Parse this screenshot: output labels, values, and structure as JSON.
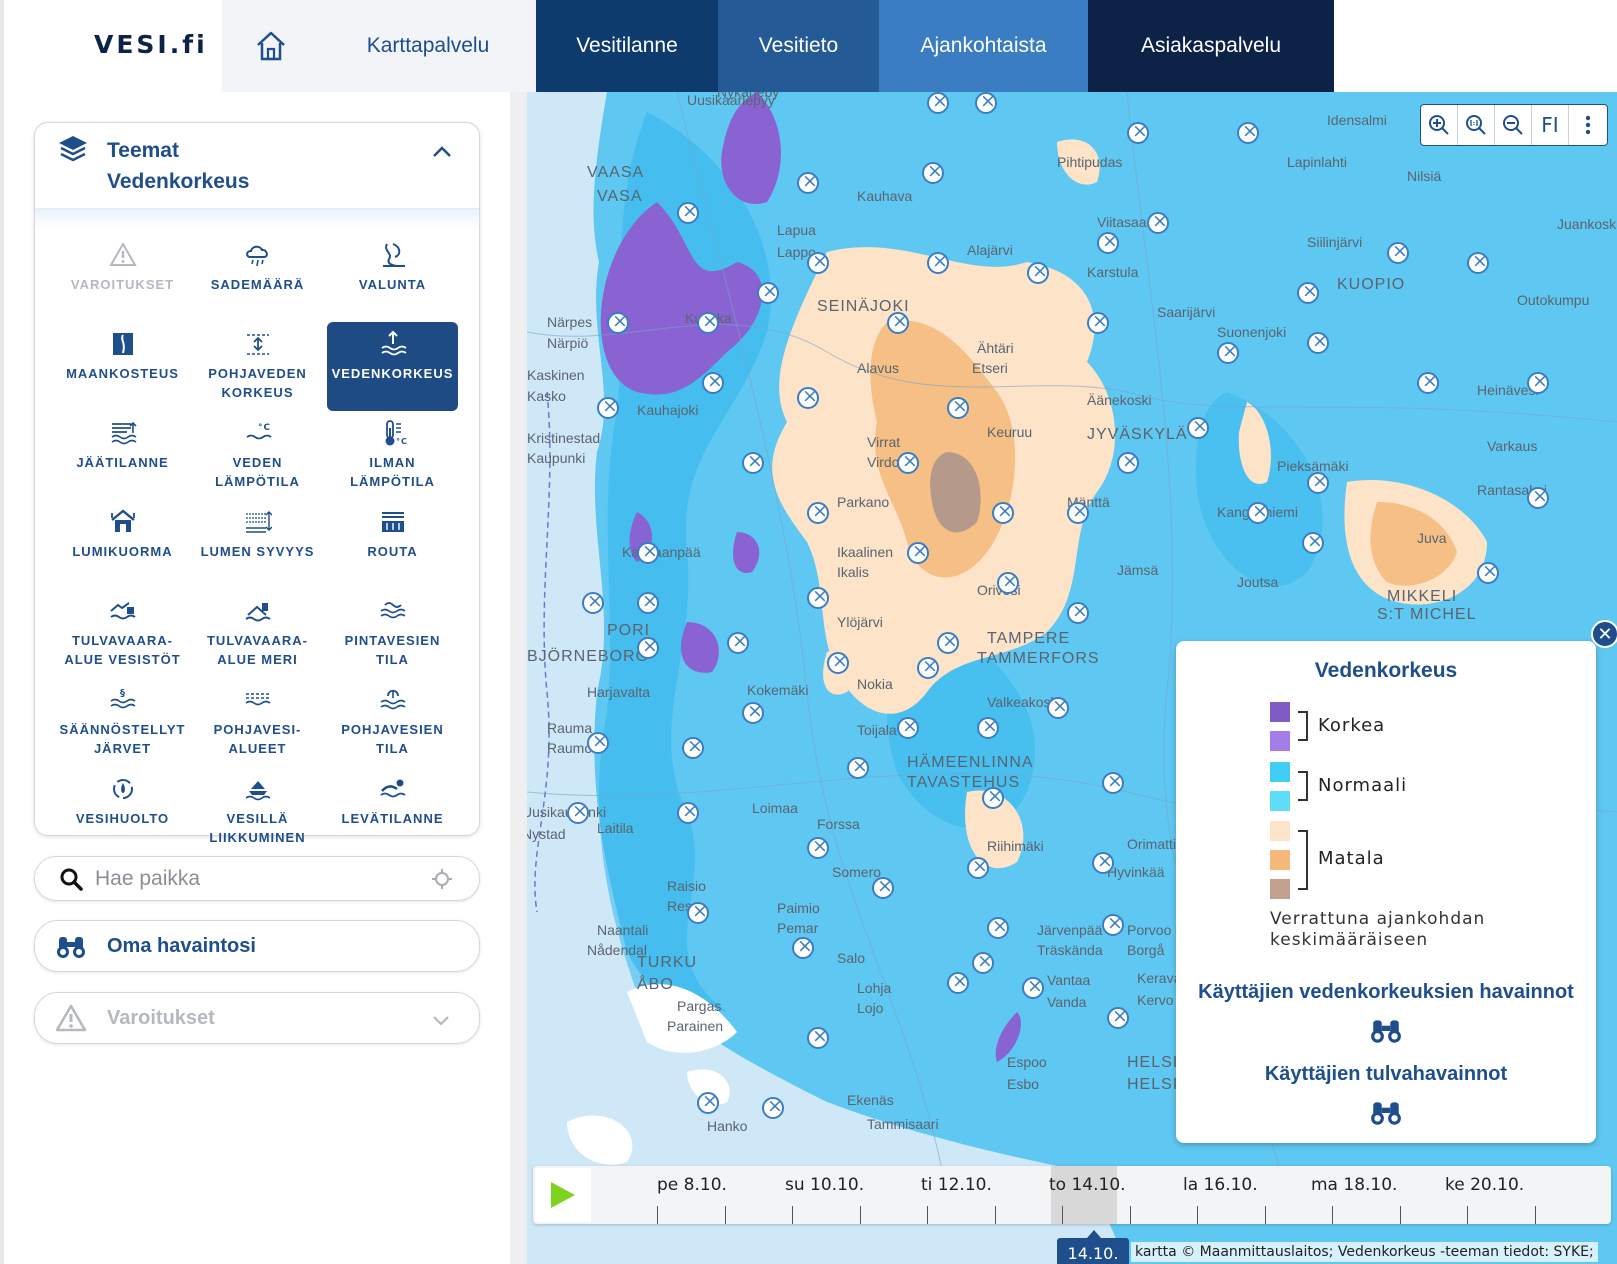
{
  "header": {
    "logo": "VESI.fi",
    "home_icon": "home-icon",
    "nav": [
      {
        "label": "Karttapalvelu"
      },
      {
        "label": "Vesitilanne"
      },
      {
        "label": "Vesitieto"
      },
      {
        "label": "Ajankohtaista"
      },
      {
        "label": "Asiakaspalvelu"
      }
    ]
  },
  "sidebar": {
    "theme_panel": {
      "title": "Teemat",
      "selected": "Vedenkorkeus",
      "themes": [
        {
          "label": "VAROITUKSET",
          "icon": "warning-icon",
          "state": "disabled"
        },
        {
          "label": "SADEMÄÄRÄ",
          "icon": "rain-cloud-icon",
          "state": "normal"
        },
        {
          "label": "VALUNTA",
          "icon": "runoff-icon",
          "state": "normal"
        },
        {
          "label": "MAANKOSTEUS",
          "icon": "soil-moisture-icon",
          "state": "normal"
        },
        {
          "label": "POHJAVEDEN\nKORKEUS",
          "icon": "groundwater-level-icon",
          "state": "normal"
        },
        {
          "label": "VEDENKORKEUS",
          "icon": "water-level-icon",
          "state": "active"
        },
        {
          "label": "JÄÄTILANNE",
          "icon": "ice-icon",
          "state": "normal"
        },
        {
          "label": "VEDEN\nLÄMPÖTILA",
          "icon": "water-temperature-icon",
          "state": "normal"
        },
        {
          "label": "ILMAN\nLÄMPÖTILA",
          "icon": "thermometer-icon",
          "state": "normal"
        },
        {
          "label": "LUMIKUORMA",
          "icon": "snow-load-icon",
          "state": "normal"
        },
        {
          "label": "LUMEN SYVYYS",
          "icon": "snow-depth-icon",
          "state": "normal"
        },
        {
          "label": "ROUTA",
          "icon": "frost-icon",
          "state": "normal"
        },
        {
          "label": "TULVAVAARA-\nALUE VESISTÖT",
          "icon": "flood-risk-icon",
          "state": "normal"
        },
        {
          "label": "TULVAVAARA-\nALUE MERI",
          "icon": "sea-flood-icon",
          "state": "normal"
        },
        {
          "label": "PINTAVESIEN\nTILA",
          "icon": "surface-water-icon",
          "state": "normal"
        },
        {
          "label": "SÄÄNNÖSTELLYT\nJÄRVET",
          "icon": "regulated-lakes-icon",
          "state": "normal"
        },
        {
          "label": "POHJAVESI-\nALUEET",
          "icon": "groundwater-areas-icon",
          "state": "normal"
        },
        {
          "label": "POHJAVESIEN\nTILA",
          "icon": "groundwater-status-icon",
          "state": "normal"
        },
        {
          "label": "VESIHUOLTO",
          "icon": "water-supply-icon",
          "state": "normal"
        },
        {
          "label": "VESILLÄ\nLIIKKUMINEN",
          "icon": "boating-icon",
          "state": "normal"
        },
        {
          "label": "LEVÄTILANNE",
          "icon": "algae-icon",
          "state": "normal"
        }
      ]
    },
    "search": {
      "placeholder": "Hae paikka"
    },
    "observation": {
      "label": "Oma havaintosi"
    },
    "warnings": {
      "label": "Varoitukset"
    }
  },
  "map": {
    "tools": [
      "zoom-in-icon",
      "zoom-reset-icon",
      "zoom-out-icon",
      "FI",
      "more-icon"
    ],
    "places": [
      {
        "name": "Uusikaarlepyy"
      },
      {
        "name": "Nykarleby"
      },
      {
        "name": "VAASA"
      },
      {
        "name": "VASA"
      },
      {
        "name": "Kauhava"
      },
      {
        "name": "Lapua"
      },
      {
        "name": "Lappo"
      },
      {
        "name": "Pihtipudas"
      },
      {
        "name": "Idensalmi"
      },
      {
        "name": "Lapinlahti"
      },
      {
        "name": "Nilsiä"
      },
      {
        "name": "Viitasaari"
      },
      {
        "name": "Alajärvi"
      },
      {
        "name": "Karstula"
      },
      {
        "name": "Siilinjärvi"
      },
      {
        "name": "KUOPIO"
      },
      {
        "name": "Outokumpu"
      },
      {
        "name": "Juankoski"
      },
      {
        "name": "SEINÄJOKI"
      },
      {
        "name": "Saarijärvi"
      },
      {
        "name": "Suonenjoki"
      },
      {
        "name": "Närpes"
      },
      {
        "name": "Närpiö"
      },
      {
        "name": "Kurikka"
      },
      {
        "name": "Alavus"
      },
      {
        "name": "Ähtäri"
      },
      {
        "name": "Etseri"
      },
      {
        "name": "Äänekoski"
      },
      {
        "name": "Kaskinen"
      },
      {
        "name": "Kasko"
      },
      {
        "name": "Kauhajoki"
      },
      {
        "name": "Heinävesi"
      },
      {
        "name": "Kristinestad"
      },
      {
        "name": "Kaupunki"
      },
      {
        "name": "Virrat"
      },
      {
        "name": "Virdois"
      },
      {
        "name": "Keuruu"
      },
      {
        "name": "JYVÄSKYLÄ"
      },
      {
        "name": "Pieksämäki"
      },
      {
        "name": "Varkaus"
      },
      {
        "name": "Kankaanpää"
      },
      {
        "name": "Parkano"
      },
      {
        "name": "Mänttä"
      },
      {
        "name": "Kangasniemi"
      },
      {
        "name": "Rantasalmi"
      },
      {
        "name": "Juva"
      },
      {
        "name": "Ikaalinen"
      },
      {
        "name": "Ikalis"
      },
      {
        "name": "Jämsä"
      },
      {
        "name": "Joutsa"
      },
      {
        "name": "MIKKELI"
      },
      {
        "name": "S:T MICHEL"
      },
      {
        "name": "Ylöjärvi"
      },
      {
        "name": "Orivesi"
      },
      {
        "name": "PORI"
      },
      {
        "name": "BJÖRNEBORG"
      },
      {
        "name": "TAMPERE"
      },
      {
        "name": "TAMMERFORS"
      },
      {
        "name": "Nokia"
      },
      {
        "name": "Harjavalta"
      },
      {
        "name": "Kokemäki"
      },
      {
        "name": "Valkeakoski"
      },
      {
        "name": "Rauma"
      },
      {
        "name": "Raumo"
      },
      {
        "name": "Toijala"
      },
      {
        "name": "HÄMEENLINNA"
      },
      {
        "name": "TAVASTEHUS"
      },
      {
        "name": "Loimaa"
      },
      {
        "name": "Uusikaupunki"
      },
      {
        "name": "Nystad"
      },
      {
        "name": "Laitila"
      },
      {
        "name": "Forssa"
      },
      {
        "name": "Riihimäki"
      },
      {
        "name": "Orimattila"
      },
      {
        "name": "Somero"
      },
      {
        "name": "Hyvinkää"
      },
      {
        "name": "Raisio"
      },
      {
        "name": "Reso"
      },
      {
        "name": "Paimio"
      },
      {
        "name": "Pemar"
      },
      {
        "name": "Naantali"
      },
      {
        "name": "Nådendal"
      },
      {
        "name": "Järvenpää"
      },
      {
        "name": "Träskända"
      },
      {
        "name": "Porvoo"
      },
      {
        "name": "Borgå"
      },
      {
        "name": "TURKU"
      },
      {
        "name": "ÅBO"
      },
      {
        "name": "Salo"
      },
      {
        "name": "Lohja"
      },
      {
        "name": "Lojo"
      },
      {
        "name": "Vantaa"
      },
      {
        "name": "Vanda"
      },
      {
        "name": "Kerava"
      },
      {
        "name": "Kervo"
      },
      {
        "name": "Pargas"
      },
      {
        "name": "Parainen"
      },
      {
        "name": "Espoo"
      },
      {
        "name": "Esbo"
      },
      {
        "name": "HELSINKI"
      },
      {
        "name": "HELSINGFORS"
      },
      {
        "name": "Ekenäs"
      },
      {
        "name": "Tammisaari"
      },
      {
        "name": "Hanko"
      }
    ],
    "legend": {
      "title": "Vedenkorkeus",
      "groups": [
        {
          "label": "Korkea",
          "colors": [
            "#7e5bc7",
            "#a57de8"
          ]
        },
        {
          "label": "Normaali",
          "colors": [
            "#42cdf5",
            "#5fdcf8"
          ]
        },
        {
          "label": "Matala",
          "colors": [
            "#fde3c8",
            "#f5b97a",
            "#c3a090"
          ]
        }
      ],
      "note": "Verrattuna ajankohdan keskimääräiseen",
      "user_levels": "Käyttäjien vedenkorkeuksien havainnot",
      "user_floods": "Käyttäjien tulvahavainnot"
    },
    "timeline": {
      "labels": [
        "pe 8.10.",
        "su 10.10.",
        "ti 12.10.",
        "to 14.10.",
        "la 16.10.",
        "ma 18.10.",
        "ke 20.10."
      ],
      "current": "14.10."
    },
    "attribution": "kartta © Maanmittauslaitos; Vedenkorkeus -teeman tiedot: SYKE;"
  }
}
